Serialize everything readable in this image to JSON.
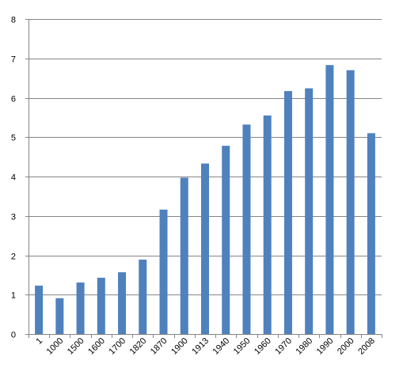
{
  "chart_data": {
    "type": "bar",
    "categories": [
      "1",
      "1000",
      "1500",
      "1600",
      "1700",
      "1820",
      "1870",
      "1900",
      "1913",
      "1940",
      "1950",
      "1960",
      "1970",
      "1980",
      "1990",
      "2000",
      "2008"
    ],
    "series": [
      {
        "values": [
          1.23,
          0.91,
          1.31,
          1.43,
          1.57,
          1.89,
          3.16,
          3.97,
          4.33,
          4.78,
          5.32,
          5.55,
          6.17,
          6.24,
          6.83,
          6.7,
          5.1
        ]
      }
    ],
    "ylim": [
      0,
      8
    ],
    "yticks": [
      "0",
      "1",
      "2",
      "3",
      "4",
      "5",
      "6",
      "7",
      "8"
    ],
    "title": "",
    "xlabel": "",
    "ylabel": "",
    "grid": true,
    "legend": "none",
    "colors": {
      "bar": "#4f81bd",
      "grid": "#868686",
      "axis": "#868686"
    }
  }
}
